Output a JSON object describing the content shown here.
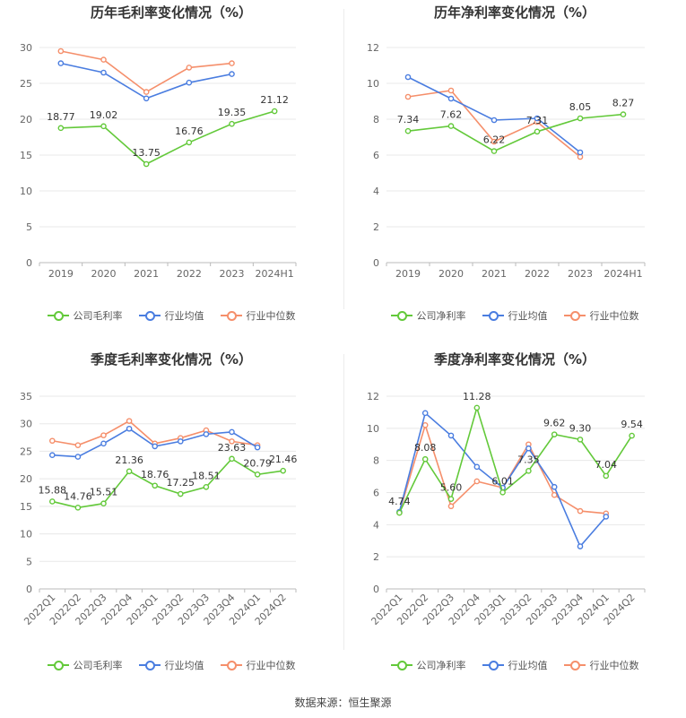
{
  "colors": {
    "company": "#63c93a",
    "industry_avg": "#4a7de0",
    "industry_median": "#f58f6b",
    "grid": "#e8e8e8",
    "axis_text": "#666666",
    "label_text": "#333333"
  },
  "legend_icon": "circle-line-icon",
  "source": "数据来源：恒生聚源",
  "chart_data": [
    {
      "id": "annual-gross",
      "type": "line",
      "title": "历年毛利率变化情况（%）",
      "categories": [
        "2019",
        "2020",
        "2021",
        "2022",
        "2023",
        "2024H1"
      ],
      "ylim": [
        0,
        30
      ],
      "yticks": [
        0,
        5,
        10,
        15,
        20,
        25,
        30
      ],
      "label_series": 0,
      "series": [
        {
          "name": "公司毛利率",
          "color_key": "company",
          "values": [
            18.77,
            19.02,
            13.75,
            16.76,
            19.35,
            21.12
          ],
          "labels": [
            "18.77",
            "19.02",
            "13.75",
            "16.76",
            "19.35",
            "21.12"
          ]
        },
        {
          "name": "行业均值",
          "color_key": "industry_avg",
          "values": [
            27.8,
            26.5,
            22.9,
            25.1,
            26.3,
            null
          ]
        },
        {
          "name": "行业中位数",
          "color_key": "industry_median",
          "values": [
            29.5,
            28.3,
            23.8,
            27.2,
            27.8,
            null
          ]
        }
      ],
      "rotate_x": false,
      "grid": true,
      "legend_position": "bottom"
    },
    {
      "id": "annual-net",
      "type": "line",
      "title": "历年净利率变化情况（%）",
      "categories": [
        "2019",
        "2020",
        "2021",
        "2022",
        "2023",
        "2024H1"
      ],
      "ylim": [
        0,
        12
      ],
      "yticks": [
        0,
        2,
        4,
        6,
        8,
        10,
        12
      ],
      "label_series": 0,
      "series": [
        {
          "name": "公司净利率",
          "color_key": "company",
          "values": [
            7.34,
            7.62,
            6.22,
            7.31,
            8.05,
            8.27
          ],
          "labels": [
            "7.34",
            "7.62",
            "6.22",
            "7.31",
            "8.05",
            "8.27"
          ]
        },
        {
          "name": "行业均值",
          "color_key": "industry_avg",
          "values": [
            10.35,
            9.15,
            7.95,
            8.05,
            6.15,
            null
          ]
        },
        {
          "name": "行业中位数",
          "color_key": "industry_median",
          "values": [
            9.25,
            9.6,
            6.75,
            7.85,
            5.9,
            null
          ]
        }
      ],
      "rotate_x": false,
      "grid": true,
      "legend_position": "bottom"
    },
    {
      "id": "quarterly-gross",
      "type": "line",
      "title": "季度毛利率变化情况（%）",
      "categories": [
        "2022Q1",
        "2022Q2",
        "2022Q3",
        "2022Q4",
        "2023Q1",
        "2023Q2",
        "2023Q3",
        "2023Q4",
        "2024Q1",
        "2024Q2"
      ],
      "ylim": [
        0,
        35
      ],
      "yticks": [
        0,
        5,
        10,
        15,
        20,
        25,
        30,
        35
      ],
      "label_series": 0,
      "series": [
        {
          "name": "公司毛利率",
          "color_key": "company",
          "values": [
            15.88,
            14.76,
            15.51,
            21.36,
            18.76,
            17.25,
            18.51,
            23.63,
            20.79,
            21.46
          ],
          "labels": [
            "15.88",
            "14.76",
            "15.51",
            "21.36",
            "18.76",
            "17.25",
            "18.51",
            "23.63",
            "20.79",
            "21.46"
          ]
        },
        {
          "name": "行业均值",
          "color_key": "industry_avg",
          "values": [
            24.3,
            24.0,
            26.4,
            29.1,
            25.9,
            26.8,
            28.1,
            28.5,
            25.7,
            null
          ]
        },
        {
          "name": "行业中位数",
          "color_key": "industry_median",
          "values": [
            26.9,
            26.1,
            27.9,
            30.5,
            26.4,
            27.4,
            28.8,
            26.8,
            26.1,
            null
          ]
        }
      ],
      "rotate_x": true,
      "grid": true,
      "legend_position": "bottom"
    },
    {
      "id": "quarterly-net",
      "type": "line",
      "title": "季度净利率变化情况（%）",
      "categories": [
        "2022Q1",
        "2022Q2",
        "2022Q3",
        "2022Q4",
        "2023Q1",
        "2023Q2",
        "2023Q3",
        "2023Q4",
        "2024Q1",
        "2024Q2"
      ],
      "ylim": [
        0,
        12
      ],
      "yticks": [
        0,
        2,
        4,
        6,
        8,
        10,
        12
      ],
      "label_series": 0,
      "series": [
        {
          "name": "公司净利率",
          "color_key": "company",
          "values": [
            4.74,
            8.08,
            5.6,
            11.28,
            6.01,
            7.35,
            9.62,
            9.3,
            7.04,
            9.54
          ],
          "labels": [
            "4.74",
            "8.08",
            "5.60",
            "11.28",
            "6.01",
            "7.35",
            "9.62",
            "9.30",
            "7.04",
            "9.54"
          ]
        },
        {
          "name": "行业均值",
          "color_key": "industry_avg",
          "values": [
            4.8,
            10.95,
            9.55,
            7.6,
            6.3,
            8.75,
            6.35,
            2.65,
            4.5,
            null
          ]
        },
        {
          "name": "行业中位数",
          "color_key": "industry_median",
          "values": [
            4.75,
            10.2,
            5.15,
            6.7,
            6.3,
            9.0,
            5.85,
            4.85,
            4.7,
            null
          ]
        }
      ],
      "rotate_x": true,
      "grid": true,
      "legend_position": "bottom"
    }
  ]
}
